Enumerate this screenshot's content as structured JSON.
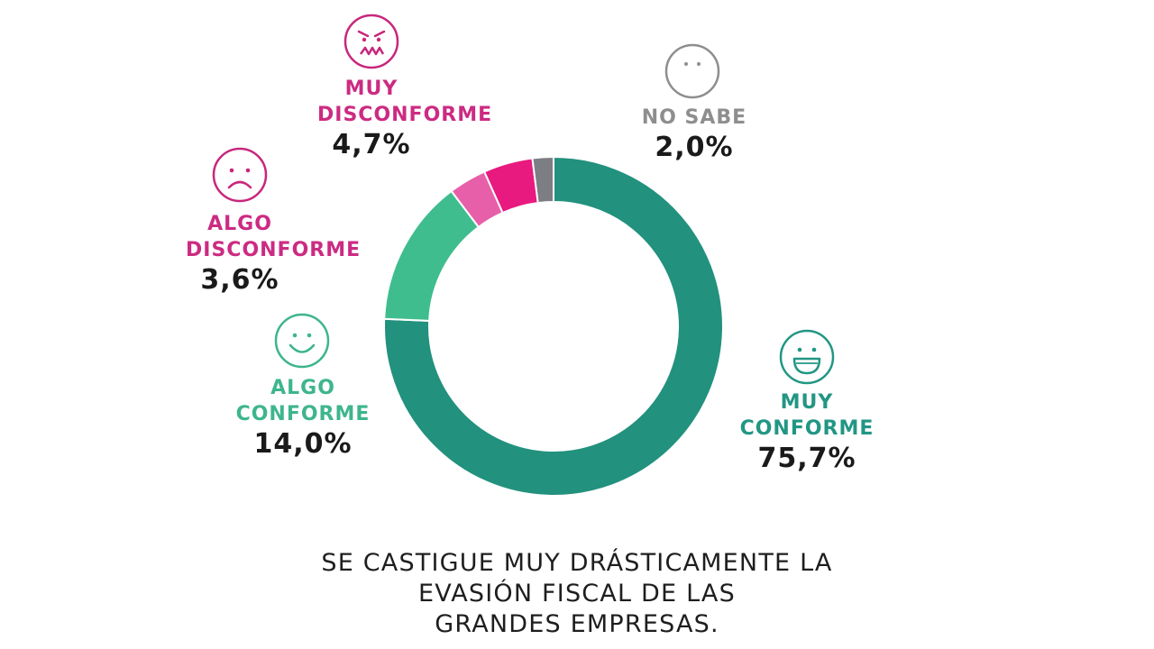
{
  "chart_data": {
    "type": "pie",
    "variant": "donut",
    "categories": [
      "MUY CONFORME",
      "ALGO CONFORME",
      "ALGO DISCONFORME",
      "MUY DISCONFORME",
      "NO SABE"
    ],
    "values": [
      75.7,
      14.0,
      3.6,
      4.7,
      2.0
    ],
    "value_labels": [
      "75,7%",
      "14,0%",
      "3,6%",
      "4,7%",
      "2,0%"
    ],
    "unit": "%",
    "colors": [
      "#22917e",
      "#3fbd8f",
      "#e85fa9",
      "#e8197f",
      "#7c7e83"
    ],
    "label_colors": [
      "#229684",
      "#3eb58e",
      "#cc2b82",
      "#cc2b82",
      "#8e8e8e"
    ],
    "icons": [
      "big-smile-face-icon",
      "smile-face-icon",
      "frown-face-icon",
      "angry-face-icon",
      "neutral-face-icon"
    ],
    "title": "",
    "legend": "labels next to the chart with face icons"
  },
  "caption": {
    "lines": [
      "SE CASTIGUE MUY DRÁSTICAMENTE LA",
      "EVASIÓN FISCAL DE LAS",
      "GRANDES EMPRESAS."
    ]
  }
}
